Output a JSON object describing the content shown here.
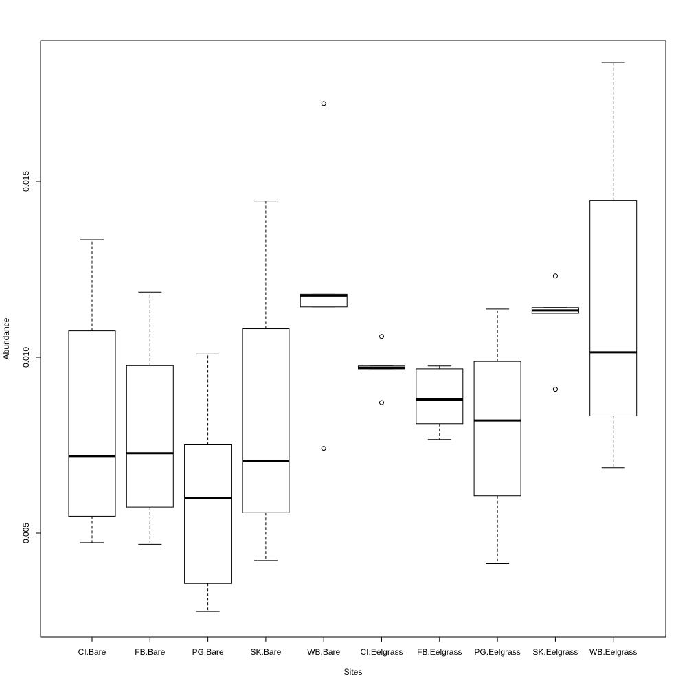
{
  "chart_data": {
    "type": "box",
    "title": "",
    "xlabel": "Sites",
    "ylabel": "Abundance",
    "ylim": [
      0.002,
      0.019
    ],
    "yticks": [
      {
        "value": 0.005,
        "label": "0.005"
      },
      {
        "value": 0.01,
        "label": "0.010"
      },
      {
        "value": 0.015,
        "label": "0.015"
      }
    ],
    "categories": [
      "CI.Bare",
      "FB.Bare",
      "PG.Bare",
      "SK.Bare",
      "WB.Bare",
      "CI.Eelgrass",
      "FB.Eelgrass",
      "PG.Eelgrass",
      "SK.Eelgrass",
      "WB.Eelgrass"
    ],
    "boxes": [
      {
        "category": "CI.Bare",
        "whisker_low": 0.00473,
        "q1": 0.00548,
        "median": 0.00719,
        "q3": 0.01075,
        "whisker_high": 0.01334,
        "outliers": []
      },
      {
        "category": "FB.Bare",
        "whisker_low": 0.00468,
        "q1": 0.00574,
        "median": 0.00727,
        "q3": 0.00976,
        "whisker_high": 0.01185,
        "outliers": []
      },
      {
        "category": "PG.Bare",
        "whisker_low": 0.00277,
        "q1": 0.00357,
        "median": 0.00599,
        "q3": 0.00751,
        "whisker_high": 0.01009,
        "outliers": []
      },
      {
        "category": "SK.Bare",
        "whisker_low": 0.00422,
        "q1": 0.00558,
        "median": 0.00704,
        "q3": 0.01081,
        "whisker_high": 0.01444,
        "outliers": []
      },
      {
        "category": "WB.Bare",
        "whisker_low": 0.01143,
        "q1": 0.01143,
        "median": 0.01175,
        "q3": 0.01179,
        "whisker_high": 0.01179,
        "outliers": [
          0.01721,
          0.00741
        ]
      },
      {
        "category": "CI.Eelgrass",
        "whisker_low": 0.00967,
        "q1": 0.00967,
        "median": 0.0097,
        "q3": 0.00975,
        "whisker_high": 0.00975,
        "outliers": [
          0.01059,
          0.00871
        ]
      },
      {
        "category": "FB.Eelgrass",
        "whisker_low": 0.00766,
        "q1": 0.00811,
        "median": 0.0088,
        "q3": 0.00967,
        "whisker_high": 0.00975,
        "outliers": []
      },
      {
        "category": "PG.Eelgrass",
        "whisker_low": 0.00413,
        "q1": 0.00606,
        "median": 0.0082,
        "q3": 0.00988,
        "whisker_high": 0.01137,
        "outliers": []
      },
      {
        "category": "SK.Eelgrass",
        "whisker_low": 0.01125,
        "q1": 0.01125,
        "median": 0.01133,
        "q3": 0.01141,
        "whisker_high": 0.01141,
        "outliers": [
          0.01231,
          0.00909
        ]
      },
      {
        "category": "WB.Eelgrass",
        "whisker_low": 0.00686,
        "q1": 0.00833,
        "median": 0.01014,
        "q3": 0.01446,
        "whisker_high": 0.01838,
        "outliers": []
      }
    ],
    "grid": false,
    "legend": "none"
  }
}
